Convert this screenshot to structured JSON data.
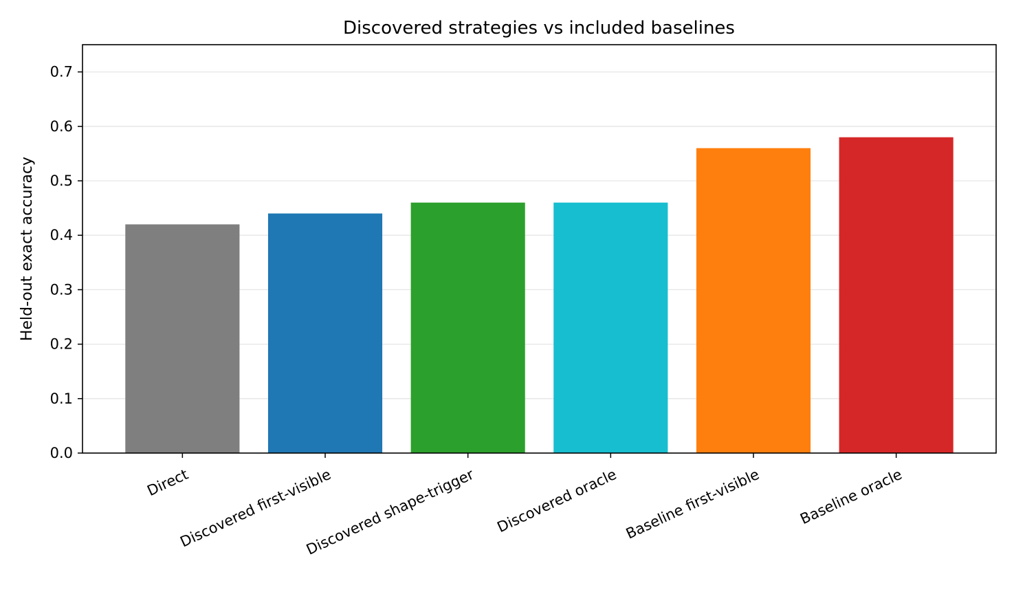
{
  "chart_data": {
    "type": "bar",
    "title": "Discovered strategies vs included baselines",
    "xlabel": "",
    "ylabel": "Held-out exact accuracy",
    "categories": [
      "Direct",
      "Discovered first-visible",
      "Discovered shape-trigger",
      "Discovered oracle",
      "Baseline first-visible",
      "Baseline oracle"
    ],
    "values": [
      0.42,
      0.44,
      0.46,
      0.46,
      0.56,
      0.58
    ],
    "colors": [
      "#7f7f7f",
      "#1f77b4",
      "#2ca02c",
      "#17becf",
      "#ff7f0e",
      "#d62728"
    ],
    "ylim": [
      0,
      0.75
    ],
    "yticks": [
      "0.0",
      "0.1",
      "0.2",
      "0.3",
      "0.4",
      "0.5",
      "0.6",
      "0.7"
    ],
    "grid": "horizontal",
    "legend": "none"
  }
}
